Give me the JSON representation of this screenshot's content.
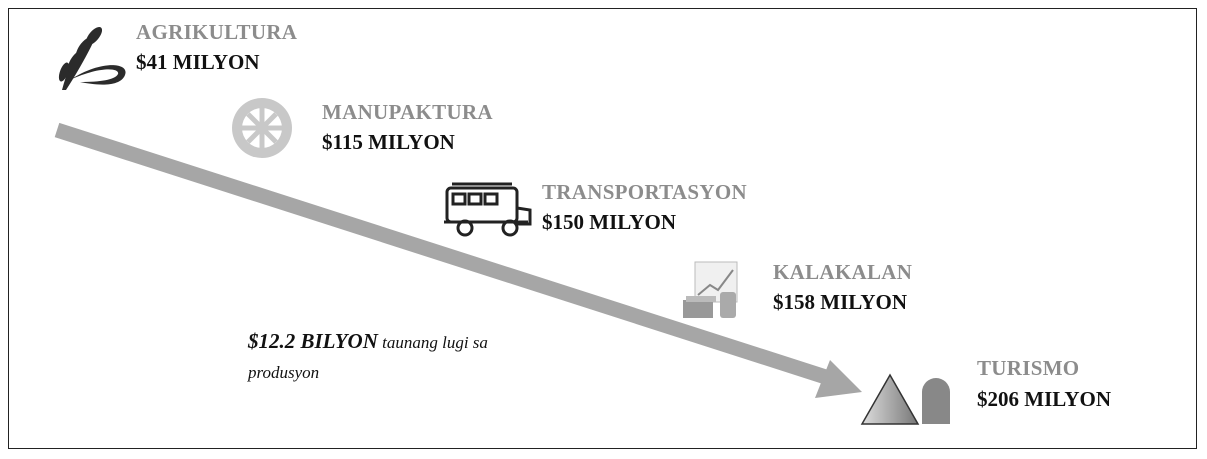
{
  "items": [
    {
      "label": "AGRIKULTURA",
      "value": "$41 MILYON"
    },
    {
      "label": "MANUPAKTURA",
      "value": "$115 MILYON"
    },
    {
      "label": "TRANSPORTASYON",
      "value": "$150 MILYON"
    },
    {
      "label": "KALAKALAN",
      "value": "$158 MILYON"
    },
    {
      "label": "TURISMO",
      "value": "$206 MILYON"
    }
  ],
  "note": {
    "emphasis": "$12.2 BILYON",
    "text": "taunang lugi sa produsyon"
  }
}
